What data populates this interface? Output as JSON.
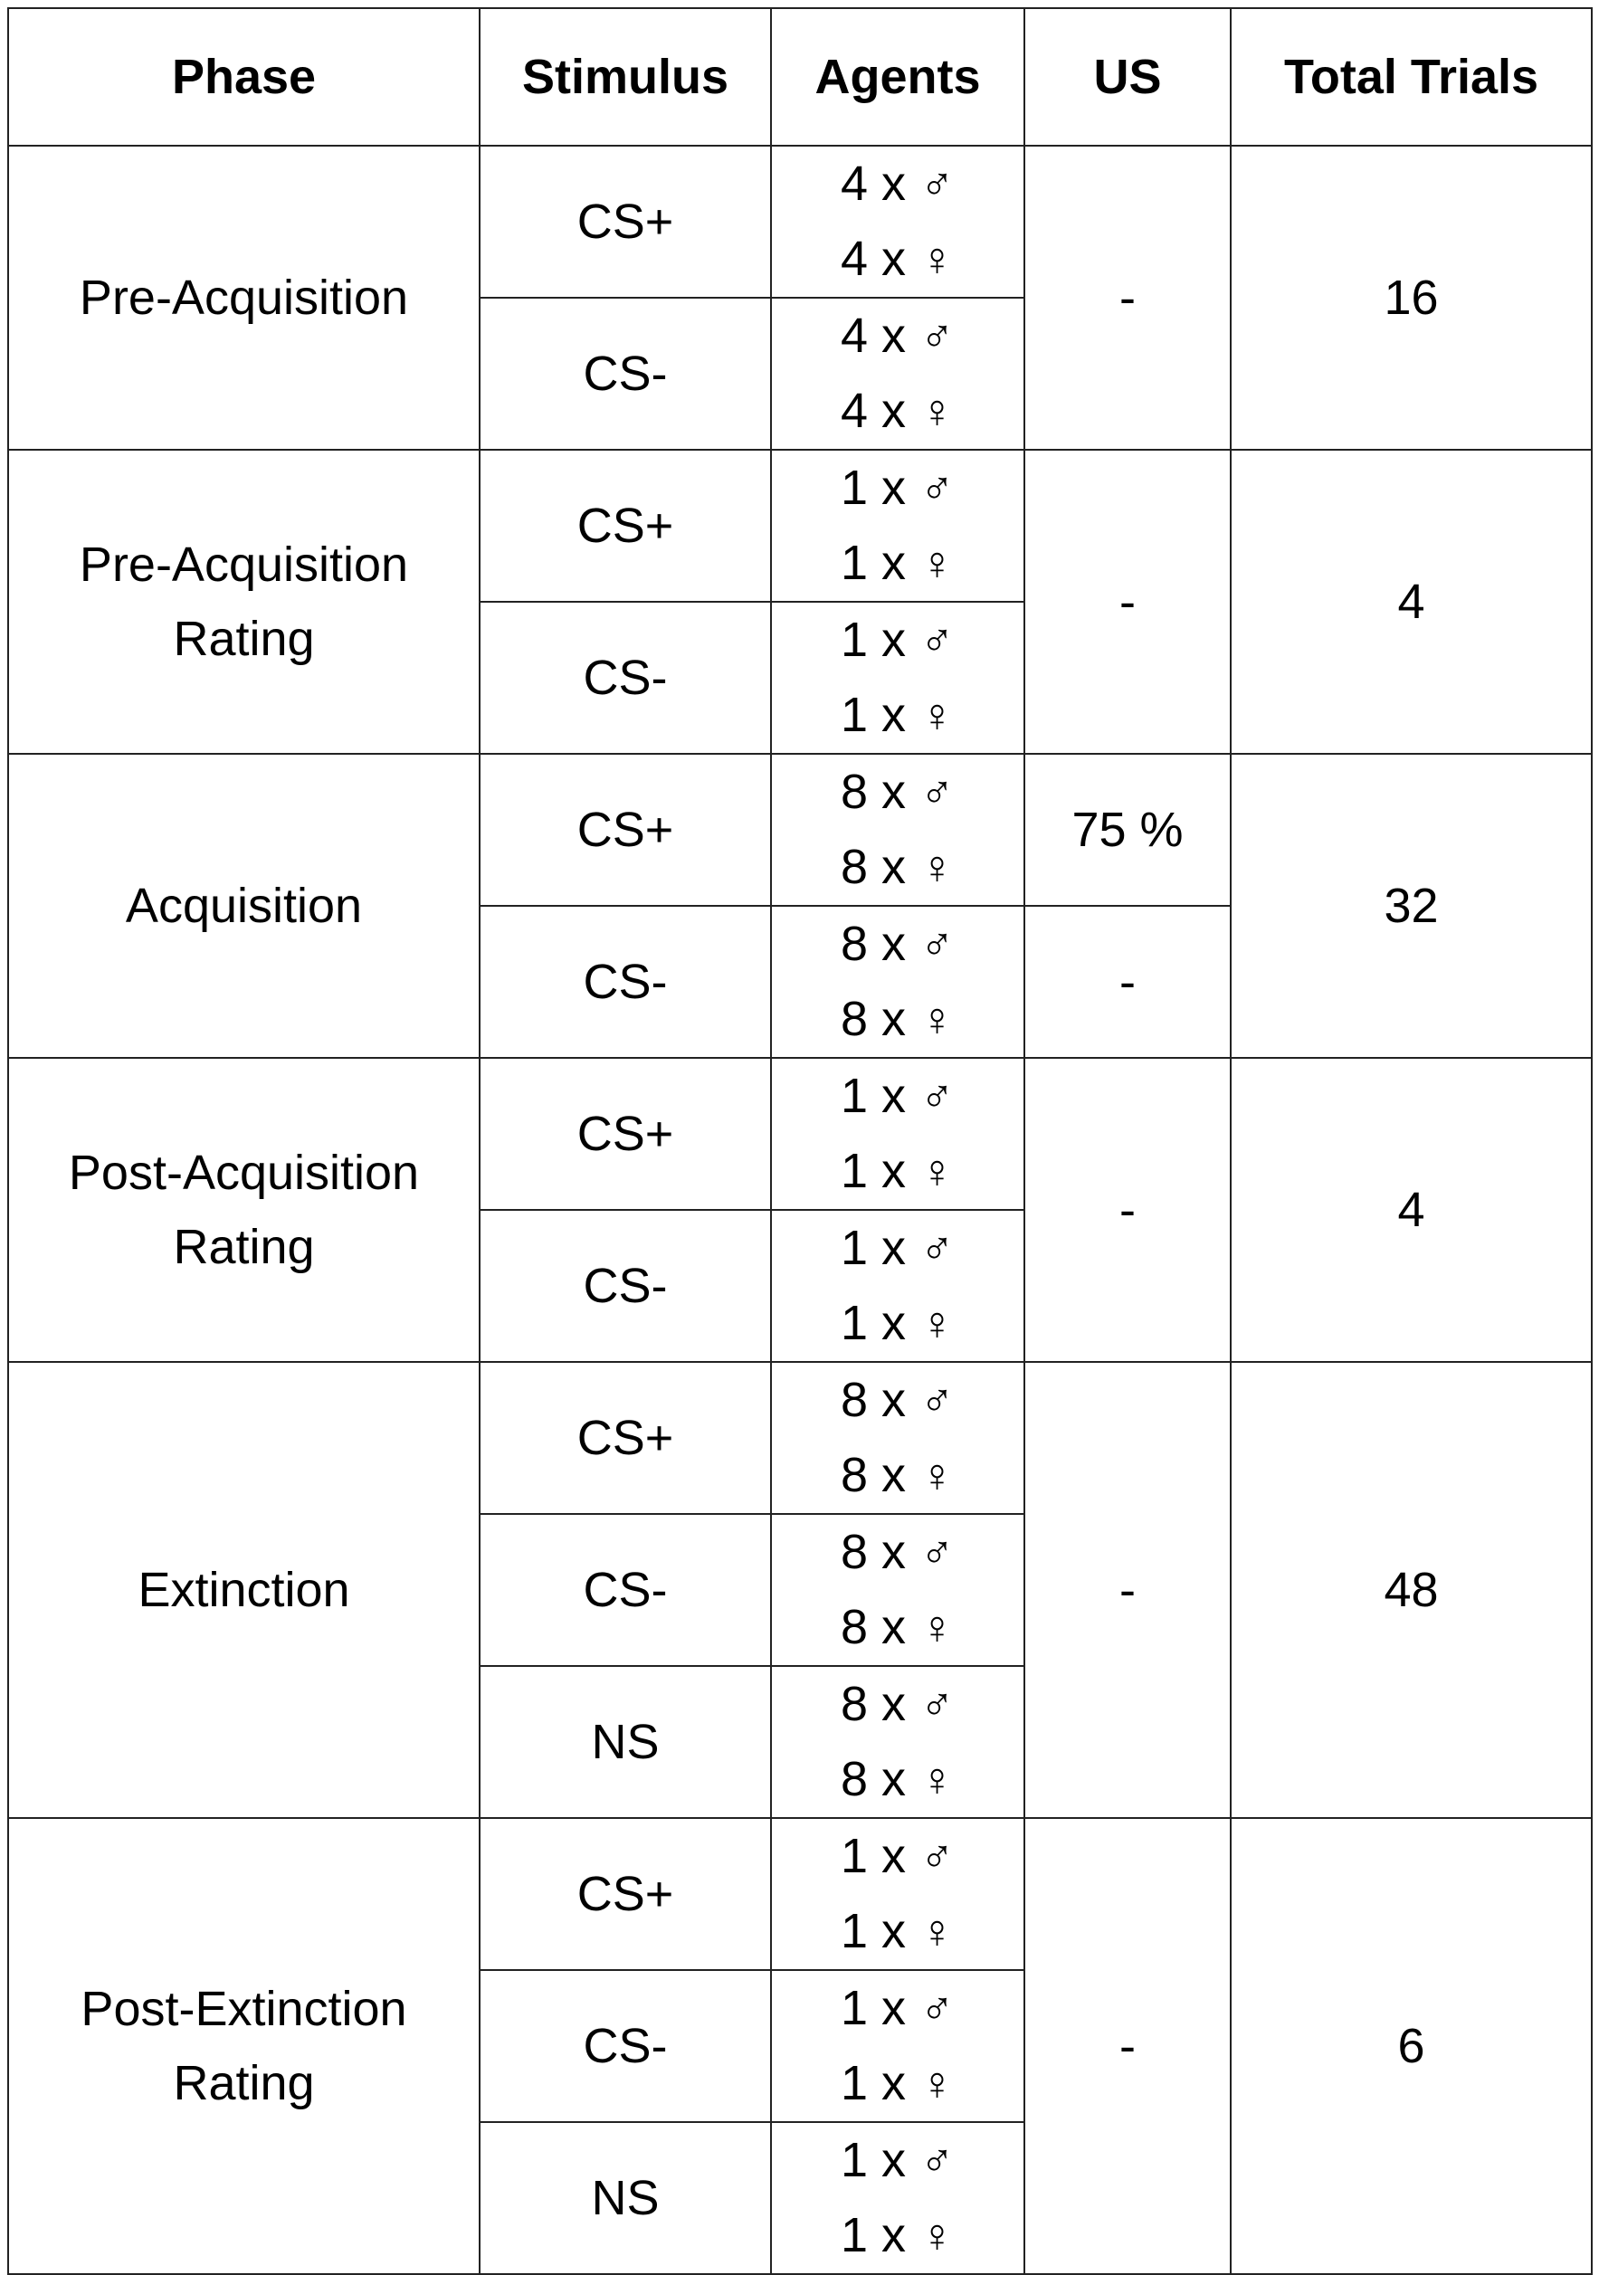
{
  "header": [
    "Phase",
    "Stimulus",
    "Agents",
    "US",
    "Total Trials"
  ],
  "symbols": {
    "male": "♂",
    "female": "♀"
  },
  "phases": [
    {
      "name": [
        "Pre-Acquisition"
      ],
      "total": "16",
      "us_groups": [
        {
          "value": "-",
          "span": 2
        }
      ],
      "stimuli": [
        {
          "label": "CS+",
          "agents": [
            {
              "count": "4 x",
              "sex": "male"
            },
            {
              "count": "4 x",
              "sex": "female"
            }
          ]
        },
        {
          "label": "CS-",
          "agents": [
            {
              "count": "4 x",
              "sex": "male"
            },
            {
              "count": "4 x",
              "sex": "female"
            }
          ]
        }
      ]
    },
    {
      "name": [
        "Pre-Acquisition",
        "Rating"
      ],
      "total": "4",
      "us_groups": [
        {
          "value": "-",
          "span": 2
        }
      ],
      "stimuli": [
        {
          "label": "CS+",
          "agents": [
            {
              "count": "1 x",
              "sex": "male"
            },
            {
              "count": "1 x",
              "sex": "female"
            }
          ]
        },
        {
          "label": "CS-",
          "agents": [
            {
              "count": "1 x",
              "sex": "male"
            },
            {
              "count": "1 x",
              "sex": "female"
            }
          ]
        }
      ]
    },
    {
      "name": [
        "Acquisition"
      ],
      "total": "32",
      "us_groups": [
        {
          "value": "75 %",
          "span": 1
        },
        {
          "value": "-",
          "span": 1
        }
      ],
      "stimuli": [
        {
          "label": "CS+",
          "agents": [
            {
              "count": "8 x",
              "sex": "male"
            },
            {
              "count": "8 x",
              "sex": "female"
            }
          ]
        },
        {
          "label": "CS-",
          "agents": [
            {
              "count": "8 x",
              "sex": "male"
            },
            {
              "count": "8 x",
              "sex": "female"
            }
          ]
        }
      ]
    },
    {
      "name": [
        "Post-Acquisition",
        "Rating"
      ],
      "total": "4",
      "us_groups": [
        {
          "value": "-",
          "span": 2
        }
      ],
      "stimuli": [
        {
          "label": "CS+",
          "agents": [
            {
              "count": "1 x",
              "sex": "male"
            },
            {
              "count": "1 x",
              "sex": "female"
            }
          ]
        },
        {
          "label": "CS-",
          "agents": [
            {
              "count": "1 x",
              "sex": "male"
            },
            {
              "count": "1 x",
              "sex": "female"
            }
          ]
        }
      ]
    },
    {
      "name": [
        "Extinction"
      ],
      "total": "48",
      "us_groups": [
        {
          "value": "-",
          "span": 3
        }
      ],
      "stimuli": [
        {
          "label": "CS+",
          "agents": [
            {
              "count": "8 x",
              "sex": "male"
            },
            {
              "count": "8 x",
              "sex": "female"
            }
          ]
        },
        {
          "label": "CS-",
          "agents": [
            {
              "count": "8 x",
              "sex": "male"
            },
            {
              "count": "8 x",
              "sex": "female"
            }
          ]
        },
        {
          "label": "NS",
          "agents": [
            {
              "count": "8 x",
              "sex": "male"
            },
            {
              "count": "8 x",
              "sex": "female"
            }
          ]
        }
      ]
    },
    {
      "name": [
        "Post-Extinction",
        "Rating"
      ],
      "total": "6",
      "us_groups": [
        {
          "value": "-",
          "span": 3
        }
      ],
      "stimuli": [
        {
          "label": "CS+",
          "agents": [
            {
              "count": "1 x",
              "sex": "male"
            },
            {
              "count": "1 x",
              "sex": "female"
            }
          ]
        },
        {
          "label": "CS-",
          "agents": [
            {
              "count": "1 x",
              "sex": "male"
            },
            {
              "count": "1 x",
              "sex": "female"
            }
          ]
        },
        {
          "label": "NS",
          "agents": [
            {
              "count": "1 x",
              "sex": "male"
            },
            {
              "count": "1 x",
              "sex": "female"
            }
          ]
        }
      ]
    }
  ]
}
